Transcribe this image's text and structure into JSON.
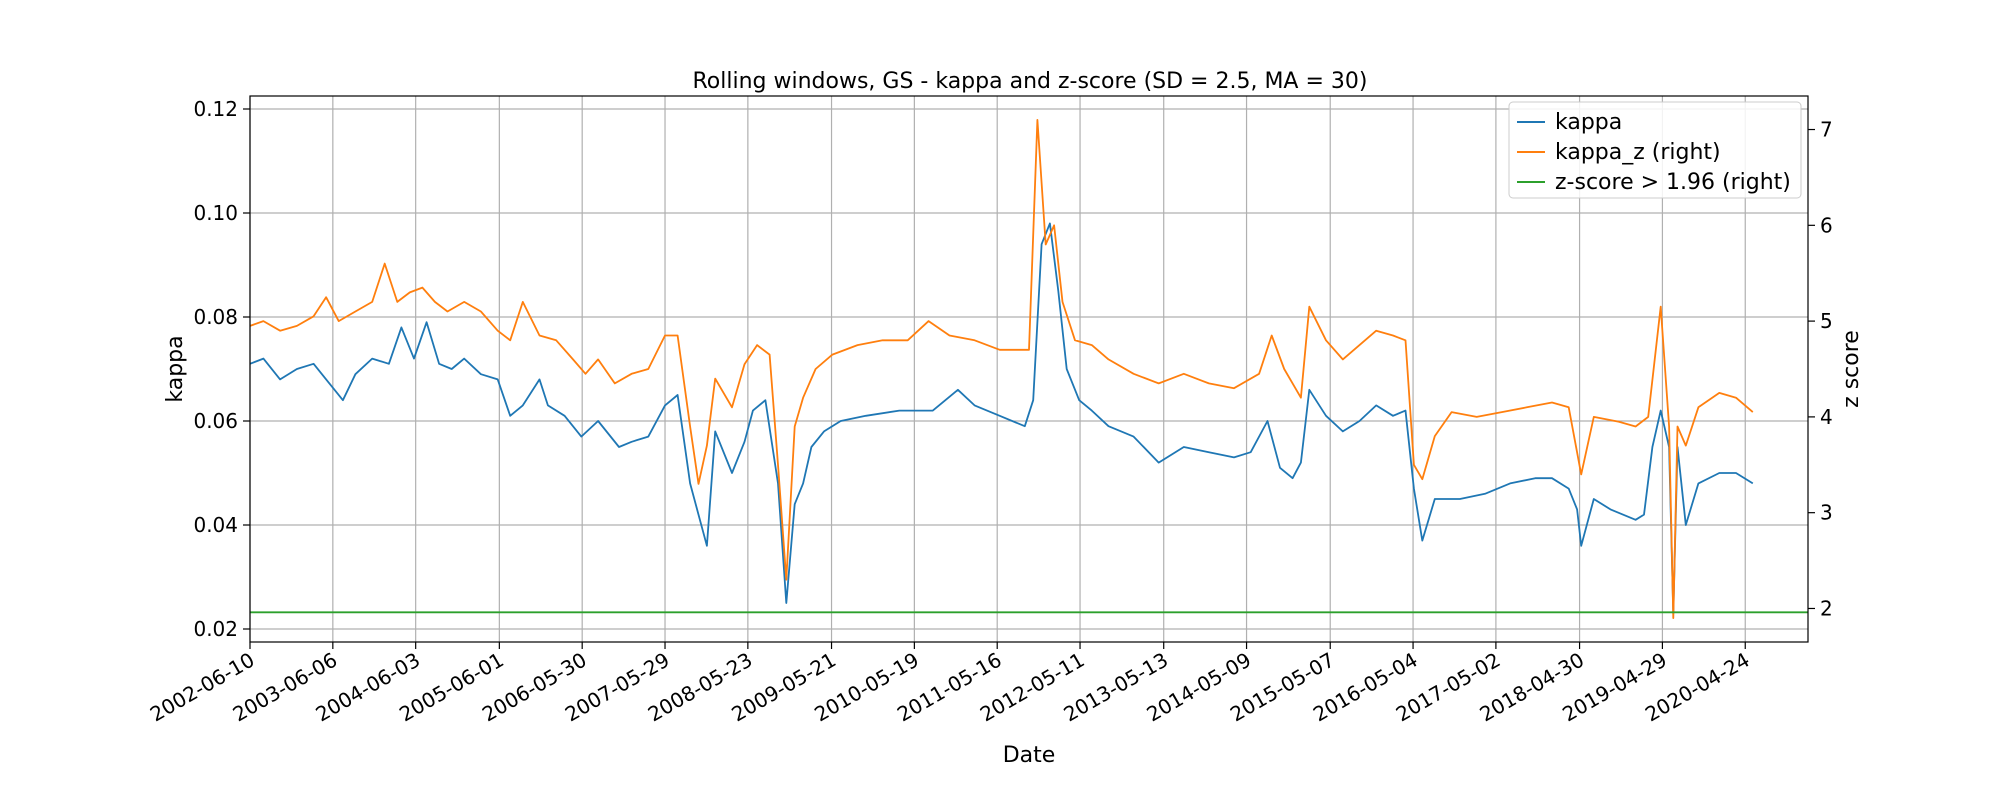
{
  "chart_data": {
    "type": "line",
    "title": "Rolling windows, GS - kappa and z-score (SD = 2.5, MA = 30)",
    "xlabel": "Date",
    "ylabel": "kappa",
    "ylabel_right": "z score",
    "ylim": [
      0.0175,
      0.1225
    ],
    "ylim_right": [
      1.65,
      7.35
    ],
    "yticks": [
      0.02,
      0.04,
      0.06,
      0.08,
      0.1,
      0.12
    ],
    "yticks_labels": [
      "0.02",
      "0.04",
      "0.06",
      "0.08",
      "0.10",
      "0.12"
    ],
    "yticks_right": [
      2,
      3,
      4,
      5,
      6,
      7
    ],
    "yticks_right_labels": [
      "2",
      "3",
      "4",
      "5",
      "6",
      "7"
    ],
    "x_range": [
      2002.44,
      2021.06
    ],
    "xticks": [
      {
        "x": 2002.44,
        "label": "2002-06-10"
      },
      {
        "x": 2003.43,
        "label": "2003-06-06"
      },
      {
        "x": 2004.42,
        "label": "2004-06-03"
      },
      {
        "x": 2005.42,
        "label": "2005-06-01"
      },
      {
        "x": 2006.41,
        "label": "2006-05-30"
      },
      {
        "x": 2007.4,
        "label": "2007-05-29"
      },
      {
        "x": 2008.39,
        "label": "2008-05-23"
      },
      {
        "x": 2009.39,
        "label": "2009-05-21"
      },
      {
        "x": 2010.38,
        "label": "2010-05-19"
      },
      {
        "x": 2011.37,
        "label": "2011-05-16"
      },
      {
        "x": 2012.36,
        "label": "2012-05-11"
      },
      {
        "x": 2013.36,
        "label": "2013-05-13"
      },
      {
        "x": 2014.35,
        "label": "2014-05-09"
      },
      {
        "x": 2015.35,
        "label": "2015-05-07"
      },
      {
        "x": 2016.34,
        "label": "2016-05-04"
      },
      {
        "x": 2017.33,
        "label": "2017-05-02"
      },
      {
        "x": 2018.33,
        "label": "2018-04-30"
      },
      {
        "x": 2019.32,
        "label": "2019-04-29"
      },
      {
        "x": 2020.31,
        "label": "2020-04-24"
      }
    ],
    "grid": true,
    "legend_position": "top-right",
    "series": [
      {
        "name": "kappa",
        "axis": "left",
        "color": "#1f77b4",
        "points": [
          [
            2002.44,
            0.071
          ],
          [
            2002.6,
            0.072
          ],
          [
            2002.8,
            0.068
          ],
          [
            2003.0,
            0.07
          ],
          [
            2003.2,
            0.071
          ],
          [
            2003.4,
            0.067
          ],
          [
            2003.55,
            0.064
          ],
          [
            2003.7,
            0.069
          ],
          [
            2003.9,
            0.072
          ],
          [
            2004.1,
            0.071
          ],
          [
            2004.25,
            0.078
          ],
          [
            2004.4,
            0.072
          ],
          [
            2004.55,
            0.079
          ],
          [
            2004.7,
            0.071
          ],
          [
            2004.85,
            0.07
          ],
          [
            2005.0,
            0.072
          ],
          [
            2005.2,
            0.069
          ],
          [
            2005.4,
            0.068
          ],
          [
            2005.55,
            0.061
          ],
          [
            2005.7,
            0.063
          ],
          [
            2005.9,
            0.068
          ],
          [
            2006.0,
            0.063
          ],
          [
            2006.2,
            0.061
          ],
          [
            2006.4,
            0.057
          ],
          [
            2006.6,
            0.06
          ],
          [
            2006.85,
            0.055
          ],
          [
            2007.0,
            0.056
          ],
          [
            2007.2,
            0.057
          ],
          [
            2007.4,
            0.063
          ],
          [
            2007.55,
            0.065
          ],
          [
            2007.7,
            0.048
          ],
          [
            2007.8,
            0.042
          ],
          [
            2007.9,
            0.036
          ],
          [
            2008.0,
            0.058
          ],
          [
            2008.2,
            0.05
          ],
          [
            2008.35,
            0.056
          ],
          [
            2008.45,
            0.062
          ],
          [
            2008.6,
            0.064
          ],
          [
            2008.75,
            0.048
          ],
          [
            2008.85,
            0.025
          ],
          [
            2008.95,
            0.044
          ],
          [
            2009.05,
            0.048
          ],
          [
            2009.15,
            0.055
          ],
          [
            2009.3,
            0.058
          ],
          [
            2009.5,
            0.06
          ],
          [
            2009.8,
            0.061
          ],
          [
            2010.2,
            0.062
          ],
          [
            2010.6,
            0.062
          ],
          [
            2010.9,
            0.066
          ],
          [
            2011.1,
            0.063
          ],
          [
            2011.4,
            0.061
          ],
          [
            2011.7,
            0.059
          ],
          [
            2011.8,
            0.064
          ],
          [
            2011.9,
            0.094
          ],
          [
            2012.0,
            0.098
          ],
          [
            2012.1,
            0.085
          ],
          [
            2012.2,
            0.07
          ],
          [
            2012.35,
            0.064
          ],
          [
            2012.5,
            0.062
          ],
          [
            2012.7,
            0.059
          ],
          [
            2013.0,
            0.057
          ],
          [
            2013.3,
            0.052
          ],
          [
            2013.6,
            0.055
          ],
          [
            2013.9,
            0.054
          ],
          [
            2014.2,
            0.053
          ],
          [
            2014.4,
            0.054
          ],
          [
            2014.6,
            0.06
          ],
          [
            2014.75,
            0.051
          ],
          [
            2014.9,
            0.049
          ],
          [
            2015.0,
            0.052
          ],
          [
            2015.1,
            0.066
          ],
          [
            2015.3,
            0.061
          ],
          [
            2015.5,
            0.058
          ],
          [
            2015.7,
            0.06
          ],
          [
            2015.9,
            0.063
          ],
          [
            2016.1,
            0.061
          ],
          [
            2016.25,
            0.062
          ],
          [
            2016.35,
            0.047
          ],
          [
            2016.45,
            0.037
          ],
          [
            2016.6,
            0.045
          ],
          [
            2016.9,
            0.045
          ],
          [
            2017.2,
            0.046
          ],
          [
            2017.5,
            0.048
          ],
          [
            2017.8,
            0.049
          ],
          [
            2018.0,
            0.049
          ],
          [
            2018.2,
            0.047
          ],
          [
            2018.3,
            0.043
          ],
          [
            2018.35,
            0.036
          ],
          [
            2018.5,
            0.045
          ],
          [
            2018.7,
            0.043
          ],
          [
            2019.0,
            0.041
          ],
          [
            2019.1,
            0.042
          ],
          [
            2019.2,
            0.055
          ],
          [
            2019.3,
            0.062
          ],
          [
            2019.4,
            0.055
          ],
          [
            2019.45,
            0.023
          ],
          [
            2019.5,
            0.055
          ],
          [
            2019.6,
            0.04
          ],
          [
            2019.75,
            0.048
          ],
          [
            2020.0,
            0.05
          ],
          [
            2020.2,
            0.05
          ],
          [
            2020.4,
            0.048
          ]
        ]
      },
      {
        "name": "kappa_z (right)",
        "axis": "right",
        "color": "#ff7f0e",
        "points": [
          [
            2002.44,
            4.95
          ],
          [
            2002.6,
            5.0
          ],
          [
            2002.8,
            4.9
          ],
          [
            2003.0,
            4.95
          ],
          [
            2003.2,
            5.05
          ],
          [
            2003.35,
            5.25
          ],
          [
            2003.5,
            5.0
          ],
          [
            2003.7,
            5.1
          ],
          [
            2003.9,
            5.2
          ],
          [
            2004.05,
            5.6
          ],
          [
            2004.2,
            5.2
          ],
          [
            2004.35,
            5.3
          ],
          [
            2004.5,
            5.35
          ],
          [
            2004.65,
            5.2
          ],
          [
            2004.8,
            5.1
          ],
          [
            2005.0,
            5.2
          ],
          [
            2005.2,
            5.1
          ],
          [
            2005.4,
            4.9
          ],
          [
            2005.55,
            4.8
          ],
          [
            2005.7,
            5.2
          ],
          [
            2005.9,
            4.85
          ],
          [
            2006.1,
            4.8
          ],
          [
            2006.3,
            4.6
          ],
          [
            2006.45,
            4.45
          ],
          [
            2006.6,
            4.6
          ],
          [
            2006.8,
            4.35
          ],
          [
            2007.0,
            4.45
          ],
          [
            2007.2,
            4.5
          ],
          [
            2007.4,
            4.85
          ],
          [
            2007.55,
            4.85
          ],
          [
            2007.7,
            3.9
          ],
          [
            2007.8,
            3.3
          ],
          [
            2007.9,
            3.7
          ],
          [
            2008.0,
            4.4
          ],
          [
            2008.2,
            4.1
          ],
          [
            2008.35,
            4.55
          ],
          [
            2008.5,
            4.75
          ],
          [
            2008.65,
            4.65
          ],
          [
            2008.75,
            3.5
          ],
          [
            2008.85,
            2.3
          ],
          [
            2008.95,
            3.9
          ],
          [
            2009.05,
            4.2
          ],
          [
            2009.2,
            4.5
          ],
          [
            2009.4,
            4.65
          ],
          [
            2009.7,
            4.75
          ],
          [
            2010.0,
            4.8
          ],
          [
            2010.3,
            4.8
          ],
          [
            2010.55,
            5.0
          ],
          [
            2010.8,
            4.85
          ],
          [
            2011.1,
            4.8
          ],
          [
            2011.4,
            4.7
          ],
          [
            2011.65,
            4.7
          ],
          [
            2011.75,
            4.7
          ],
          [
            2011.85,
            7.1
          ],
          [
            2011.95,
            5.8
          ],
          [
            2012.05,
            6.0
          ],
          [
            2012.15,
            5.2
          ],
          [
            2012.3,
            4.8
          ],
          [
            2012.5,
            4.75
          ],
          [
            2012.7,
            4.6
          ],
          [
            2013.0,
            4.45
          ],
          [
            2013.3,
            4.35
          ],
          [
            2013.6,
            4.45
          ],
          [
            2013.9,
            4.35
          ],
          [
            2014.2,
            4.3
          ],
          [
            2014.5,
            4.45
          ],
          [
            2014.65,
            4.85
          ],
          [
            2014.8,
            4.5
          ],
          [
            2015.0,
            4.2
          ],
          [
            2015.1,
            5.15
          ],
          [
            2015.3,
            4.8
          ],
          [
            2015.5,
            4.6
          ],
          [
            2015.7,
            4.75
          ],
          [
            2015.9,
            4.9
          ],
          [
            2016.1,
            4.85
          ],
          [
            2016.25,
            4.8
          ],
          [
            2016.35,
            3.5
          ],
          [
            2016.45,
            3.35
          ],
          [
            2016.6,
            3.8
          ],
          [
            2016.8,
            4.05
          ],
          [
            2017.1,
            4.0
          ],
          [
            2017.4,
            4.05
          ],
          [
            2017.7,
            4.1
          ],
          [
            2018.0,
            4.15
          ],
          [
            2018.2,
            4.1
          ],
          [
            2018.35,
            3.4
          ],
          [
            2018.5,
            4.0
          ],
          [
            2018.8,
            3.95
          ],
          [
            2019.0,
            3.9
          ],
          [
            2019.15,
            4.0
          ],
          [
            2019.3,
            5.15
          ],
          [
            2019.4,
            3.9
          ],
          [
            2019.45,
            1.9
          ],
          [
            2019.5,
            3.9
          ],
          [
            2019.6,
            3.7
          ],
          [
            2019.75,
            4.1
          ],
          [
            2020.0,
            4.25
          ],
          [
            2020.2,
            4.2
          ],
          [
            2020.4,
            4.05
          ]
        ]
      },
      {
        "name": "z-score > 1.96 (right)",
        "axis": "right",
        "color": "#2ca02c",
        "points": [
          [
            2002.44,
            1.96
          ],
          [
            2021.06,
            1.96
          ]
        ]
      }
    ]
  }
}
